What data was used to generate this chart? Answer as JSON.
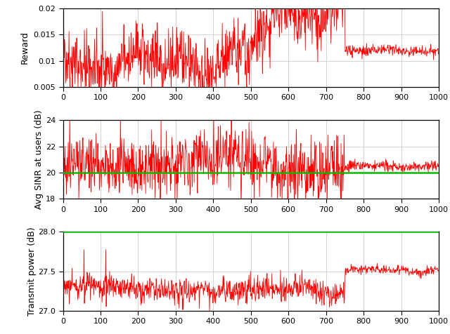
{
  "n_episodes": 1000,
  "convergence_point": 750,
  "reward_ylim": [
    0.005,
    0.02
  ],
  "reward_yticks": [
    0.005,
    0.01,
    0.015,
    0.02
  ],
  "reward_ylabel": "Reward",
  "sinr_ylim": [
    18,
    24
  ],
  "sinr_yticks": [
    18,
    20,
    22,
    24
  ],
  "sinr_ylabel": "Avg SINR at users (dB)",
  "sinr_target": 20.0,
  "power_ylim": [
    27.0,
    28.0
  ],
  "power_yticks": [
    27.0,
    27.5,
    28.0
  ],
  "power_ylabel": "Transmit power (dB)",
  "power_limit": 28.0,
  "xticks": [
    0,
    100,
    200,
    300,
    400,
    500,
    600,
    700,
    800,
    900,
    1000
  ],
  "red_color": "#FF0000",
  "green_color": "#00BB00",
  "bg_color": "#FFFFFF",
  "grid_color": "#CCCCCC",
  "seed": 42
}
